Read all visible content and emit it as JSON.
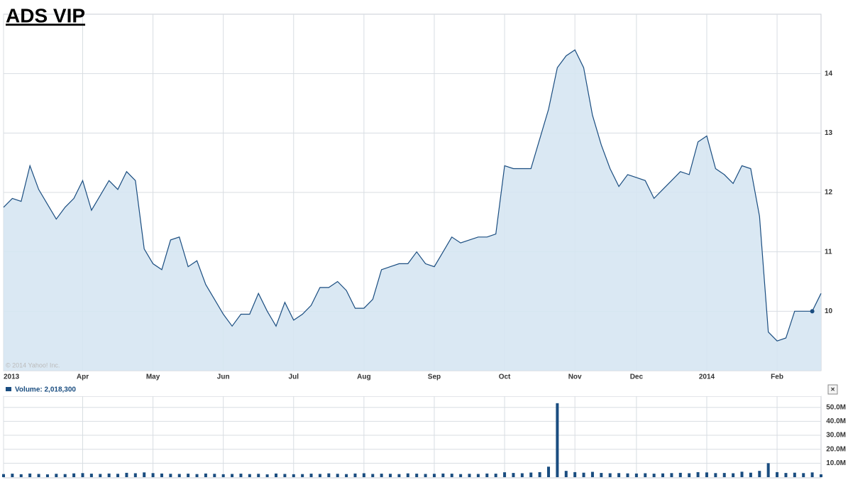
{
  "chart_data": [
    {
      "type": "area",
      "title": "ADS VIP",
      "credit": "© 2014 Yahoo! Inc.",
      "color": "#1a4d80",
      "fill": "#d6e6f2",
      "grid": true,
      "categories": [
        "2013",
        null,
        null,
        null,
        null,
        null,
        null,
        null,
        null,
        "Apr",
        null,
        null,
        null,
        null,
        null,
        null,
        null,
        "May",
        null,
        null,
        null,
        null,
        null,
        null,
        null,
        "Jun",
        null,
        null,
        null,
        null,
        null,
        null,
        null,
        "Jul",
        null,
        null,
        null,
        null,
        null,
        null,
        null,
        "Aug",
        null,
        null,
        null,
        null,
        null,
        null,
        null,
        "Sep",
        null,
        null,
        null,
        null,
        null,
        null,
        null,
        "Oct",
        null,
        null,
        null,
        null,
        null,
        null,
        null,
        "Nov",
        null,
        null,
        null,
        null,
        null,
        null,
        "Dec",
        null,
        null,
        null,
        null,
        null,
        null,
        null,
        "2014",
        null,
        null,
        null,
        null,
        null,
        null,
        null,
        "Feb",
        null,
        null,
        null,
        null,
        null
      ],
      "values": [
        11.75,
        11.9,
        11.85,
        12.45,
        12.05,
        11.8,
        11.55,
        11.75,
        11.9,
        12.2,
        11.7,
        11.95,
        12.2,
        12.05,
        12.35,
        12.2,
        11.05,
        10.8,
        10.7,
        11.2,
        11.25,
        10.75,
        10.85,
        10.45,
        10.2,
        9.95,
        9.75,
        9.95,
        9.95,
        10.3,
        10.0,
        9.75,
        10.15,
        9.85,
        9.95,
        10.1,
        10.4,
        10.4,
        10.5,
        10.35,
        10.05,
        10.05,
        10.2,
        10.7,
        10.75,
        10.8,
        10.8,
        11.0,
        10.8,
        10.75,
        11.0,
        11.25,
        11.15,
        11.2,
        11.25,
        11.25,
        11.3,
        12.45,
        12.4,
        12.4,
        12.4,
        12.9,
        13.4,
        14.1,
        14.3,
        14.4,
        14.1,
        13.3,
        12.8,
        12.4,
        12.1,
        12.3,
        12.25,
        12.2,
        11.9,
        12.05,
        12.2,
        12.35,
        12.3,
        12.85,
        12.95,
        12.4,
        12.3,
        12.15,
        12.45,
        12.4,
        11.6,
        9.65,
        9.5,
        9.55,
        10.0,
        10.0,
        10.0,
        10.3
      ],
      "ylim": [
        9,
        15
      ],
      "yticks": [
        10,
        11,
        12,
        13,
        14
      ]
    },
    {
      "type": "bar",
      "title": "Volume: 2,018,300",
      "color": "#1a4d80",
      "grid": true,
      "values": [
        2200000,
        2500000,
        2100000,
        2600000,
        2300000,
        2000000,
        2400000,
        2200000,
        2700000,
        2900000,
        2500000,
        2300000,
        2600000,
        2400000,
        3100000,
        2800000,
        3400000,
        2900000,
        2600000,
        2400000,
        2300000,
        2500000,
        2200000,
        2600000,
        2400000,
        2100000,
        2300000,
        2500000,
        2200000,
        2400000,
        2000000,
        2600000,
        2300000,
        2100000,
        2200000,
        2500000,
        2300000,
        2700000,
        2400000,
        2200000,
        2600000,
        2800000,
        2300000,
        2500000,
        2400000,
        2200000,
        2700000,
        2500000,
        2300000,
        2400000,
        2600000,
        2500000,
        2200000,
        2400000,
        2300000,
        2600000,
        2500000,
        3500000,
        3000000,
        2800000,
        3300000,
        3600000,
        7500000,
        53000000,
        4500000,
        3600000,
        3200000,
        3800000,
        3000000,
        2800000,
        2900000,
        2700000,
        2600000,
        2800000,
        2500000,
        2700000,
        2900000,
        3100000,
        2800000,
        3600000,
        3400000,
        2900000,
        3000000,
        2800000,
        3900000,
        3200000,
        4500000,
        10000000,
        3600000,
        3000000,
        3200000,
        2900000,
        3400000,
        2018300
      ],
      "ylim": [
        0,
        58000000
      ],
      "yticks": [
        {
          "value": 10000000,
          "label": "10.0M"
        },
        {
          "value": 20000000,
          "label": "20.0M"
        },
        {
          "value": 30000000,
          "label": "30.0M"
        },
        {
          "value": 40000000,
          "label": "40.0M"
        },
        {
          "value": 50000000,
          "label": "50.0M"
        }
      ]
    }
  ]
}
